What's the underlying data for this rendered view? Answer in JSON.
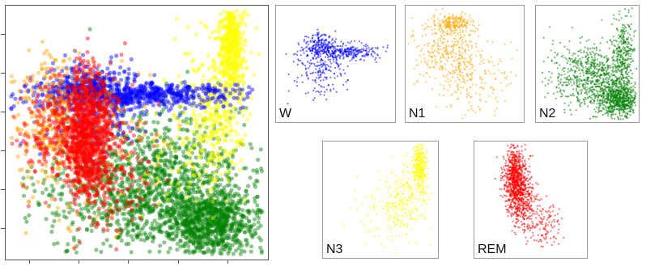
{
  "chart_data": [
    {
      "type": "scatter",
      "panel": "combined",
      "title": "",
      "xlabel": "",
      "ylabel": "",
      "tick_labels_shown": false,
      "grid": false,
      "series": [
        {
          "name": "W",
          "color": "#0000ff",
          "n": 1100,
          "clusters": [
            {
              "cx": 0.52,
              "cy": 0.35,
              "sx": 0.2,
              "sy": 0.025,
              "w": 0.55
            },
            {
              "cx": 0.32,
              "cy": 0.32,
              "sx": 0.08,
              "sy": 0.04,
              "w": 0.3
            },
            {
              "cx": 0.35,
              "cy": 0.42,
              "sx": 0.12,
              "sy": 0.08,
              "w": 0.15
            }
          ]
        },
        {
          "name": "N1",
          "color": "#ffa500",
          "n": 500,
          "clusters": [
            {
              "cx": 0.2,
              "cy": 0.45,
              "sx": 0.1,
              "sy": 0.12,
              "w": 0.6
            },
            {
              "cx": 0.3,
              "cy": 0.55,
              "sx": 0.12,
              "sy": 0.15,
              "w": 0.4
            }
          ]
        },
        {
          "name": "N2",
          "color": "#008000",
          "n": 2200,
          "clusters": [
            {
              "cx": 0.78,
              "cy": 0.85,
              "sx": 0.1,
              "sy": 0.07,
              "w": 0.45
            },
            {
              "cx": 0.6,
              "cy": 0.68,
              "sx": 0.18,
              "sy": 0.14,
              "w": 0.35
            },
            {
              "cx": 0.45,
              "cy": 0.75,
              "sx": 0.15,
              "sy": 0.1,
              "w": 0.2
            }
          ]
        },
        {
          "name": "N3",
          "color": "#ffff00",
          "n": 900,
          "clusters": [
            {
              "cx": 0.86,
              "cy": 0.15,
              "sx": 0.025,
              "sy": 0.1,
              "w": 0.5
            },
            {
              "cx": 0.8,
              "cy": 0.4,
              "sx": 0.06,
              "sy": 0.15,
              "w": 0.35
            },
            {
              "cx": 0.68,
              "cy": 0.55,
              "sx": 0.12,
              "sy": 0.12,
              "w": 0.15
            }
          ]
        },
        {
          "name": "REM",
          "color": "#ff0000",
          "n": 1400,
          "clusters": [
            {
              "cx": 0.32,
              "cy": 0.52,
              "sx": 0.05,
              "sy": 0.13,
              "w": 0.7
            },
            {
              "cx": 0.22,
              "cy": 0.48,
              "sx": 0.08,
              "sy": 0.1,
              "w": 0.2
            },
            {
              "cx": 0.42,
              "cy": 0.65,
              "sx": 0.08,
              "sy": 0.12,
              "w": 0.1
            }
          ]
        }
      ]
    },
    {
      "type": "scatter",
      "panel": "W",
      "label": "W",
      "color": "#0000ff",
      "n": 650,
      "clusters": [
        {
          "cx": 0.55,
          "cy": 0.4,
          "sx": 0.17,
          "sy": 0.035,
          "w": 0.45
        },
        {
          "cx": 0.36,
          "cy": 0.34,
          "sx": 0.07,
          "sy": 0.05,
          "w": 0.25
        },
        {
          "cx": 0.38,
          "cy": 0.55,
          "sx": 0.11,
          "sy": 0.12,
          "w": 0.3
        }
      ]
    },
    {
      "type": "scatter",
      "panel": "N1",
      "label": "N1",
      "color": "#ffa500",
      "n": 700,
      "clusters": [
        {
          "cx": 0.4,
          "cy": 0.15,
          "sx": 0.08,
          "sy": 0.04,
          "w": 0.25
        },
        {
          "cx": 0.35,
          "cy": 0.4,
          "sx": 0.15,
          "sy": 0.15,
          "w": 0.45
        },
        {
          "cx": 0.55,
          "cy": 0.6,
          "sx": 0.18,
          "sy": 0.18,
          "w": 0.3
        }
      ]
    },
    {
      "type": "scatter",
      "panel": "N2",
      "label": "N2",
      "color": "#008000",
      "n": 1700,
      "clusters": [
        {
          "cx": 0.8,
          "cy": 0.8,
          "sx": 0.1,
          "sy": 0.08,
          "w": 0.4
        },
        {
          "cx": 0.55,
          "cy": 0.6,
          "sx": 0.2,
          "sy": 0.14,
          "w": 0.45
        },
        {
          "cx": 0.85,
          "cy": 0.4,
          "sx": 0.05,
          "sy": 0.15,
          "w": 0.15
        }
      ]
    },
    {
      "type": "scatter",
      "panel": "N3",
      "label": "N3",
      "color": "#ffff00",
      "n": 650,
      "clusters": [
        {
          "cx": 0.84,
          "cy": 0.22,
          "sx": 0.03,
          "sy": 0.1,
          "w": 0.5
        },
        {
          "cx": 0.72,
          "cy": 0.5,
          "sx": 0.1,
          "sy": 0.15,
          "w": 0.35
        },
        {
          "cx": 0.55,
          "cy": 0.62,
          "sx": 0.15,
          "sy": 0.15,
          "w": 0.15
        }
      ]
    },
    {
      "type": "scatter",
      "panel": "REM",
      "label": "REM",
      "color": "#ff0000",
      "n": 1200,
      "clusters": [
        {
          "cx": 0.36,
          "cy": 0.3,
          "sx": 0.05,
          "sy": 0.12,
          "w": 0.6
        },
        {
          "cx": 0.42,
          "cy": 0.5,
          "sx": 0.06,
          "sy": 0.12,
          "w": 0.3
        },
        {
          "cx": 0.6,
          "cy": 0.72,
          "sx": 0.1,
          "sy": 0.1,
          "w": 0.1
        }
      ]
    }
  ]
}
